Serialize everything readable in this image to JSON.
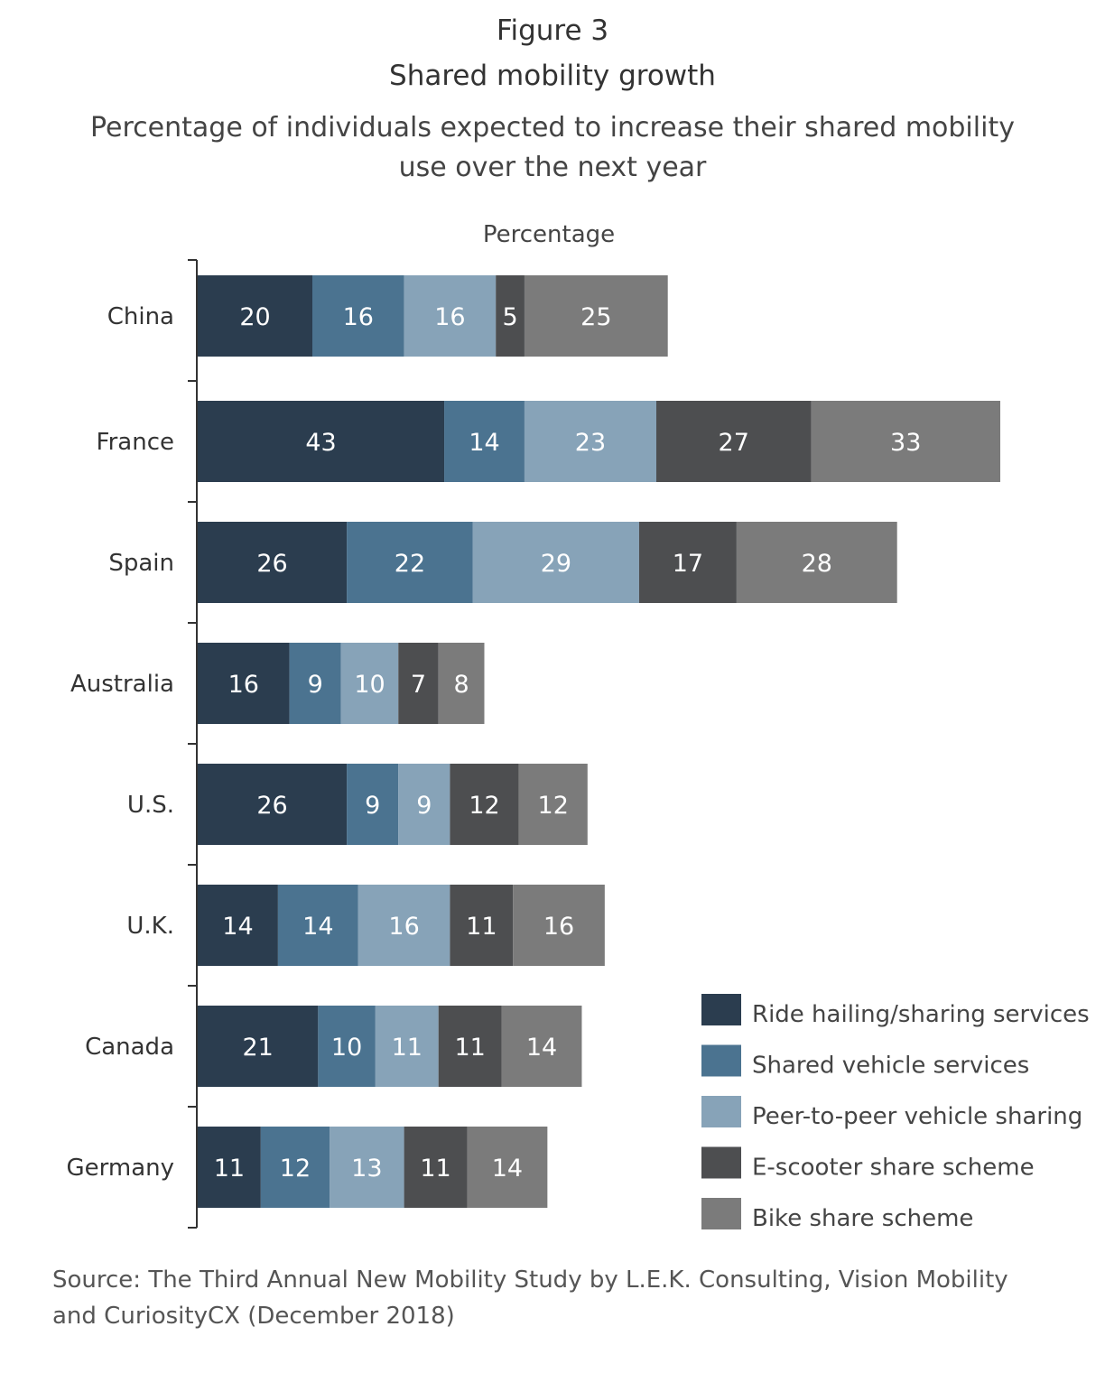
{
  "figure_label": "Figure 3",
  "chart_data": {
    "type": "bar",
    "orientation": "horizontal",
    "stacked": true,
    "title": "Shared mobility growth",
    "subtitle": "Percentage of individuals expected to increase their shared mobility use over the next year",
    "xlabel": "Percentage",
    "categories": [
      "China",
      "France",
      "Spain",
      "Australia",
      "U.S.",
      "U.K.",
      "Canada",
      "Germany"
    ],
    "series": [
      {
        "name": "Ride hailing/sharing services",
        "color": "#2b3d4f",
        "values": [
          20,
          43,
          26,
          16,
          26,
          14,
          21,
          11
        ]
      },
      {
        "name": "Shared vehicle services",
        "color": "#4b7390",
        "values": [
          16,
          14,
          22,
          9,
          9,
          14,
          10,
          12
        ]
      },
      {
        "name": "Peer-to-peer vehicle sharing",
        "color": "#87a3b8",
        "values": [
          16,
          23,
          29,
          10,
          9,
          16,
          11,
          13
        ]
      },
      {
        "name": "E-scooter share scheme",
        "color": "#4d4e50",
        "values": [
          5,
          27,
          17,
          7,
          12,
          11,
          11,
          11
        ]
      },
      {
        "name": "Bike share scheme",
        "color": "#7b7b7b",
        "values": [
          25,
          33,
          28,
          8,
          12,
          16,
          14,
          14
        ]
      }
    ],
    "data_labels": true,
    "grid": false,
    "legend_position": "bottom-right"
  },
  "source": "Source: The Third Annual New Mobility Study by L.E.K. Consulting, Vision Mobility and CuriosityCX (December 2018)"
}
